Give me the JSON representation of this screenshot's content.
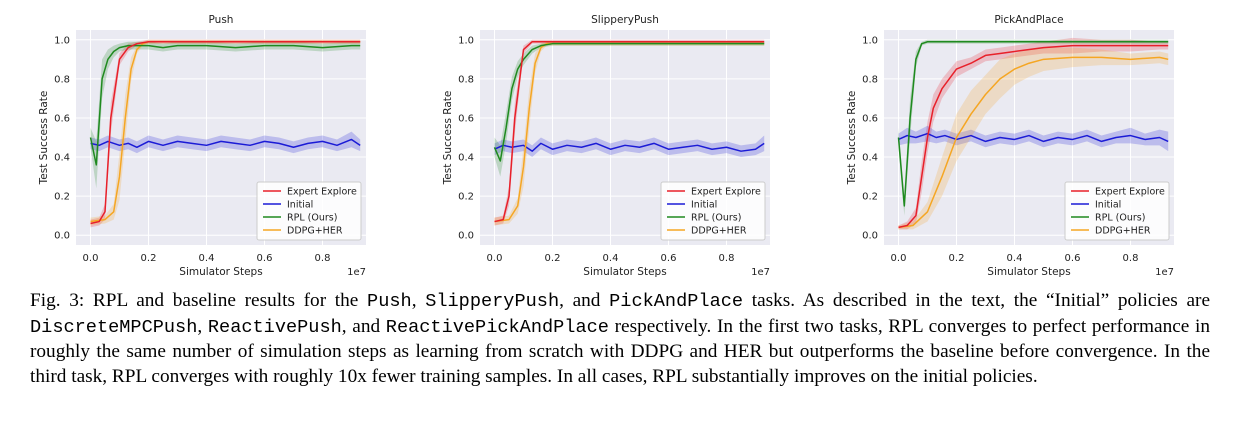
{
  "colors": {
    "expert": "#e8202a",
    "initial": "#1b1bd6",
    "rpl": "#1f8a1f",
    "ddpg": "#f5a623",
    "panel_bg": "#eaeaf2",
    "grid": "#ffffff"
  },
  "chart_data": [
    {
      "type": "line",
      "title": "Push",
      "xlabel": "Simulator Steps",
      "ylabel": "Test Success Rate",
      "x_offset_label": "1e7",
      "xlim": [
        -0.05,
        0.95
      ],
      "ylim": [
        -0.05,
        1.05
      ],
      "xticks": [
        "0.0",
        "0.2",
        "0.4",
        "0.6",
        "0.8"
      ],
      "yticks": [
        "0.0",
        "0.2",
        "0.4",
        "0.6",
        "0.8",
        "1.0"
      ],
      "grid": true,
      "legend": "lower-right",
      "series": [
        {
          "name": "Expert Explore",
          "x": [
            0.0,
            0.03,
            0.05,
            0.07,
            0.1,
            0.13,
            0.16,
            0.2,
            0.3,
            0.5,
            0.7,
            0.93
          ],
          "y": [
            0.06,
            0.07,
            0.12,
            0.6,
            0.9,
            0.96,
            0.98,
            0.99,
            0.99,
            0.99,
            0.99,
            0.99
          ],
          "band": [
            0.02,
            0.02,
            0.04,
            0.08,
            0.03,
            0.02,
            0.01,
            0.01,
            0.01,
            0.01,
            0.01,
            0.01
          ]
        },
        {
          "name": "Initial",
          "x": [
            0.0,
            0.03,
            0.06,
            0.1,
            0.13,
            0.16,
            0.2,
            0.25,
            0.3,
            0.35,
            0.4,
            0.45,
            0.5,
            0.55,
            0.6,
            0.65,
            0.7,
            0.75,
            0.8,
            0.85,
            0.9,
            0.93
          ],
          "y": [
            0.47,
            0.46,
            0.48,
            0.46,
            0.47,
            0.45,
            0.48,
            0.46,
            0.48,
            0.47,
            0.46,
            0.48,
            0.47,
            0.46,
            0.48,
            0.47,
            0.45,
            0.47,
            0.48,
            0.46,
            0.49,
            0.46
          ],
          "band": [
            0.03,
            0.03,
            0.03,
            0.03,
            0.03,
            0.03,
            0.03,
            0.03,
            0.03,
            0.03,
            0.03,
            0.03,
            0.03,
            0.03,
            0.03,
            0.03,
            0.03,
            0.03,
            0.03,
            0.03,
            0.04,
            0.03
          ]
        },
        {
          "name": "RPL (Ours)",
          "x": [
            0.0,
            0.02,
            0.04,
            0.06,
            0.08,
            0.1,
            0.13,
            0.16,
            0.2,
            0.25,
            0.3,
            0.4,
            0.5,
            0.6,
            0.7,
            0.8,
            0.9,
            0.93
          ],
          "y": [
            0.5,
            0.36,
            0.8,
            0.9,
            0.94,
            0.96,
            0.97,
            0.97,
            0.97,
            0.96,
            0.97,
            0.97,
            0.96,
            0.97,
            0.97,
            0.96,
            0.97,
            0.97
          ],
          "band": [
            0.05,
            0.12,
            0.1,
            0.05,
            0.03,
            0.02,
            0.02,
            0.02,
            0.02,
            0.02,
            0.02,
            0.02,
            0.02,
            0.02,
            0.02,
            0.02,
            0.02,
            0.02
          ]
        },
        {
          "name": "DDPG+HER",
          "x": [
            0.0,
            0.05,
            0.08,
            0.1,
            0.12,
            0.14,
            0.16,
            0.18,
            0.2,
            0.3,
            0.5,
            0.7,
            0.93
          ],
          "y": [
            0.07,
            0.08,
            0.12,
            0.3,
            0.6,
            0.85,
            0.95,
            0.98,
            0.99,
            0.99,
            0.99,
            0.99,
            0.99
          ],
          "band": [
            0.02,
            0.02,
            0.04,
            0.12,
            0.12,
            0.06,
            0.02,
            0.01,
            0.01,
            0.01,
            0.01,
            0.01,
            0.01
          ]
        }
      ]
    },
    {
      "type": "line",
      "title": "SlipperyPush",
      "xlabel": "Simulator Steps",
      "ylabel": "Test Success Rate",
      "x_offset_label": "1e7",
      "xlim": [
        -0.05,
        0.95
      ],
      "ylim": [
        -0.05,
        1.05
      ],
      "xticks": [
        "0.0",
        "0.2",
        "0.4",
        "0.6",
        "0.8"
      ],
      "yticks": [
        "0.0",
        "0.2",
        "0.4",
        "0.6",
        "0.8",
        "1.0"
      ],
      "grid": true,
      "legend": "lower-right",
      "series": [
        {
          "name": "Expert Explore",
          "x": [
            0.0,
            0.03,
            0.05,
            0.07,
            0.1,
            0.13,
            0.16,
            0.2,
            0.3,
            0.5,
            0.7,
            0.93
          ],
          "y": [
            0.07,
            0.08,
            0.2,
            0.6,
            0.95,
            0.99,
            0.99,
            0.99,
            0.99,
            0.99,
            0.99,
            0.99
          ],
          "band": [
            0.02,
            0.02,
            0.05,
            0.08,
            0.02,
            0.01,
            0.01,
            0.01,
            0.01,
            0.01,
            0.01,
            0.01
          ]
        },
        {
          "name": "Initial",
          "x": [
            0.0,
            0.03,
            0.06,
            0.1,
            0.13,
            0.16,
            0.2,
            0.25,
            0.3,
            0.35,
            0.4,
            0.45,
            0.5,
            0.55,
            0.6,
            0.65,
            0.7,
            0.75,
            0.8,
            0.85,
            0.9,
            0.93
          ],
          "y": [
            0.44,
            0.46,
            0.45,
            0.46,
            0.43,
            0.47,
            0.44,
            0.46,
            0.45,
            0.47,
            0.44,
            0.46,
            0.45,
            0.47,
            0.44,
            0.45,
            0.46,
            0.44,
            0.45,
            0.43,
            0.44,
            0.47
          ],
          "band": [
            0.03,
            0.03,
            0.03,
            0.03,
            0.03,
            0.03,
            0.03,
            0.03,
            0.03,
            0.03,
            0.03,
            0.03,
            0.03,
            0.03,
            0.03,
            0.03,
            0.03,
            0.03,
            0.03,
            0.03,
            0.03,
            0.04
          ]
        },
        {
          "name": "RPL (Ours)",
          "x": [
            0.0,
            0.02,
            0.04,
            0.06,
            0.08,
            0.1,
            0.13,
            0.16,
            0.2,
            0.3,
            0.4,
            0.5,
            0.6,
            0.7,
            0.8,
            0.9,
            0.93
          ],
          "y": [
            0.45,
            0.38,
            0.55,
            0.75,
            0.85,
            0.9,
            0.95,
            0.97,
            0.98,
            0.98,
            0.98,
            0.98,
            0.98,
            0.98,
            0.98,
            0.98,
            0.98
          ],
          "band": [
            0.05,
            0.08,
            0.08,
            0.06,
            0.04,
            0.03,
            0.02,
            0.01,
            0.01,
            0.01,
            0.01,
            0.01,
            0.01,
            0.01,
            0.01,
            0.01,
            0.01
          ]
        },
        {
          "name": "DDPG+HER",
          "x": [
            0.0,
            0.05,
            0.08,
            0.1,
            0.12,
            0.14,
            0.16,
            0.18,
            0.2,
            0.3,
            0.5,
            0.7,
            0.93
          ],
          "y": [
            0.07,
            0.08,
            0.15,
            0.35,
            0.65,
            0.88,
            0.96,
            0.98,
            0.98,
            0.98,
            0.98,
            0.98,
            0.98
          ],
          "band": [
            0.02,
            0.02,
            0.04,
            0.1,
            0.1,
            0.05,
            0.02,
            0.01,
            0.01,
            0.01,
            0.01,
            0.01,
            0.01
          ]
        }
      ]
    },
    {
      "type": "line",
      "title": "PickAndPlace",
      "xlabel": "Simulator Steps",
      "ylabel": "Test Success Rate",
      "x_offset_label": "1e7",
      "xlim": [
        -0.05,
        0.95
      ],
      "ylim": [
        -0.05,
        1.05
      ],
      "xticks": [
        "0.0",
        "0.2",
        "0.4",
        "0.6",
        "0.8"
      ],
      "yticks": [
        "0.0",
        "0.2",
        "0.4",
        "0.6",
        "0.8",
        "1.0"
      ],
      "grid": true,
      "legend": "lower-right",
      "series": [
        {
          "name": "Expert Explore",
          "x": [
            0.0,
            0.03,
            0.06,
            0.08,
            0.1,
            0.12,
            0.15,
            0.2,
            0.25,
            0.3,
            0.35,
            0.4,
            0.5,
            0.6,
            0.7,
            0.8,
            0.9,
            0.93
          ],
          "y": [
            0.04,
            0.05,
            0.1,
            0.3,
            0.5,
            0.65,
            0.75,
            0.85,
            0.88,
            0.92,
            0.93,
            0.94,
            0.96,
            0.97,
            0.97,
            0.97,
            0.97,
            0.97
          ],
          "band": [
            0.01,
            0.02,
            0.04,
            0.08,
            0.08,
            0.07,
            0.05,
            0.04,
            0.03,
            0.03,
            0.03,
            0.03,
            0.03,
            0.04,
            0.03,
            0.03,
            0.02,
            0.02
          ]
        },
        {
          "name": "Initial",
          "x": [
            0.0,
            0.03,
            0.06,
            0.1,
            0.13,
            0.16,
            0.2,
            0.25,
            0.3,
            0.35,
            0.4,
            0.45,
            0.5,
            0.55,
            0.6,
            0.65,
            0.7,
            0.75,
            0.8,
            0.85,
            0.9,
            0.93
          ],
          "y": [
            0.49,
            0.51,
            0.5,
            0.52,
            0.5,
            0.51,
            0.49,
            0.51,
            0.48,
            0.5,
            0.49,
            0.51,
            0.48,
            0.5,
            0.49,
            0.51,
            0.48,
            0.5,
            0.51,
            0.49,
            0.5,
            0.48
          ],
          "band": [
            0.03,
            0.04,
            0.03,
            0.04,
            0.03,
            0.03,
            0.03,
            0.03,
            0.03,
            0.03,
            0.03,
            0.03,
            0.03,
            0.03,
            0.03,
            0.03,
            0.03,
            0.03,
            0.04,
            0.03,
            0.04,
            0.05
          ]
        },
        {
          "name": "RPL (Ours)",
          "x": [
            0.0,
            0.02,
            0.04,
            0.06,
            0.08,
            0.1,
            0.15,
            0.2,
            0.3,
            0.5,
            0.7,
            0.93
          ],
          "y": [
            0.5,
            0.15,
            0.6,
            0.9,
            0.98,
            0.99,
            0.99,
            0.99,
            0.99,
            0.99,
            0.99,
            0.99
          ],
          "band": [
            0.05,
            0.05,
            0.1,
            0.04,
            0.01,
            0.01,
            0.01,
            0.01,
            0.01,
            0.01,
            0.01,
            0.01
          ]
        },
        {
          "name": "DDPG+HER",
          "x": [
            0.0,
            0.05,
            0.1,
            0.15,
            0.2,
            0.25,
            0.3,
            0.35,
            0.4,
            0.45,
            0.5,
            0.6,
            0.7,
            0.8,
            0.9,
            0.93
          ],
          "y": [
            0.04,
            0.05,
            0.12,
            0.3,
            0.5,
            0.62,
            0.72,
            0.8,
            0.85,
            0.88,
            0.9,
            0.91,
            0.91,
            0.9,
            0.91,
            0.9
          ],
          "band": [
            0.01,
            0.02,
            0.05,
            0.1,
            0.12,
            0.12,
            0.1,
            0.1,
            0.08,
            0.07,
            0.06,
            0.05,
            0.04,
            0.03,
            0.03,
            0.03
          ]
        }
      ]
    }
  ],
  "caption": {
    "p1": "Fig. 3: RPL and baseline results for the ",
    "c1": "Push",
    "p2": ", ",
    "c2": "SlipperyPush",
    "p3": ", and ",
    "c3": "PickAndPlace",
    "p4": " tasks. As described in the text, the “Initial” policies are ",
    "c4": "DiscreteMPCPush",
    "p5": ", ",
    "c5": "ReactivePush",
    "p6": ", and ",
    "c6": "ReactivePickAndPlace",
    "p7": " respectively. In the first two tasks, RPL converges to perfect performance in roughly the same number of simulation steps as learning from scratch with DDPG and HER but outperforms the baseline before convergence. In the third task, RPL converges with roughly 10x fewer training samples. In all cases, RPL substantially improves on the initial policies."
  }
}
